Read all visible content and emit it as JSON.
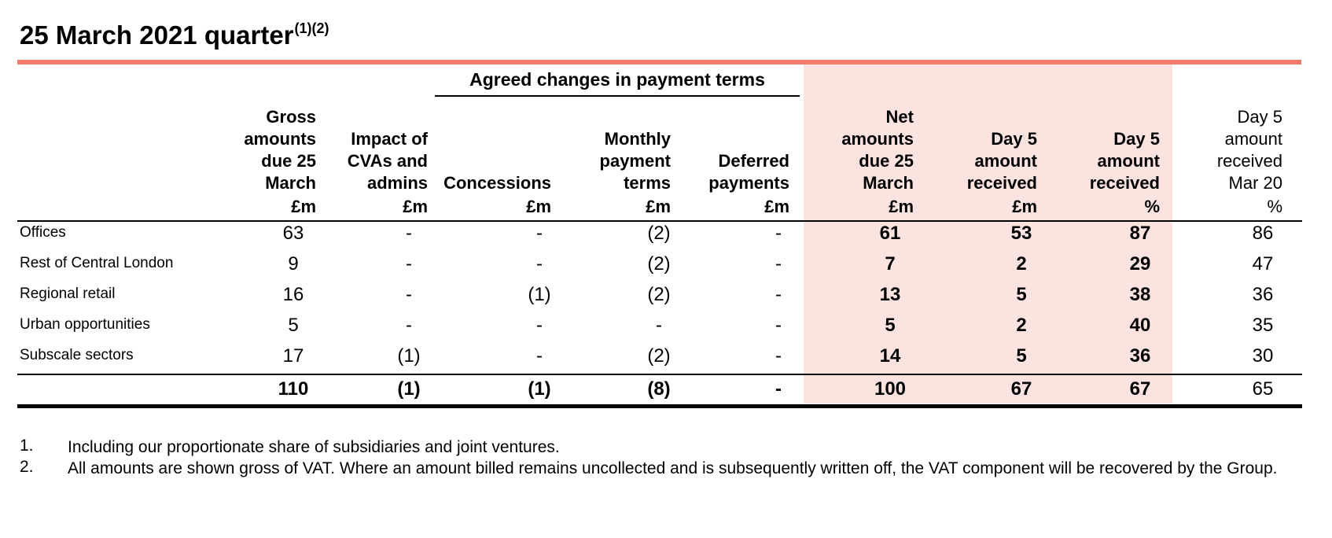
{
  "title": "25 March 2021 quarter",
  "title_footnote_ref": "(1)(2)",
  "group_header": "Agreed changes in payment terms",
  "columns": [
    {
      "label": "Gross\namounts\ndue 25\nMarch",
      "unit": "£m"
    },
    {
      "label": "Impact of\nCVAs and\nadmins",
      "unit": "£m"
    },
    {
      "label": "Concessions",
      "unit": "£m"
    },
    {
      "label": "Monthly\npayment\nterms",
      "unit": "£m"
    },
    {
      "label": "Deferred\npayments",
      "unit": "£m"
    },
    {
      "label": "Net\namounts\ndue 25\nMarch",
      "unit": "£m"
    },
    {
      "label": "Day 5\namount\nreceived",
      "unit": "£m"
    },
    {
      "label": "Day 5\namount\nreceived",
      "unit": "%"
    },
    {
      "label": "Day 5\namount\nreceived\nMar 20",
      "unit": "%"
    }
  ],
  "rows": [
    {
      "label": "Offices",
      "values": [
        "63",
        "-",
        "-",
        "(2)",
        "-",
        "61",
        "53",
        "87",
        "86"
      ]
    },
    {
      "label": "Rest of Central London",
      "values": [
        "9",
        "-",
        "-",
        "(2)",
        "-",
        "7",
        "2",
        "29",
        "47"
      ]
    },
    {
      "label": "Regional retail",
      "values": [
        "16",
        "-",
        "(1)",
        "(2)",
        "-",
        "13",
        "5",
        "38",
        "36"
      ]
    },
    {
      "label": "Urban opportunities",
      "values": [
        "5",
        "-",
        "-",
        "-",
        "-",
        "5",
        "2",
        "40",
        "35"
      ]
    },
    {
      "label": "Subscale sectors",
      "values": [
        "17",
        "(1)",
        "-",
        "(2)",
        "-",
        "14",
        "5",
        "36",
        "30"
      ]
    }
  ],
  "total": {
    "label": "",
    "values": [
      "110",
      "(1)",
      "(1)",
      "(8)",
      "-",
      "100",
      "67",
      "67",
      "65"
    ]
  },
  "footnotes": [
    {
      "num": "1.",
      "text": "Including our proportionate share of subsidiaries and joint ventures."
    },
    {
      "num": "2.",
      "text": "All amounts are shown gross of VAT. Where an amount billed remains uncollected and is subsequently written off, the VAT component will be recovered by the Group."
    }
  ],
  "colors": {
    "accent_rule": "#f47b6c",
    "highlight_fill": "#fce3e0"
  }
}
